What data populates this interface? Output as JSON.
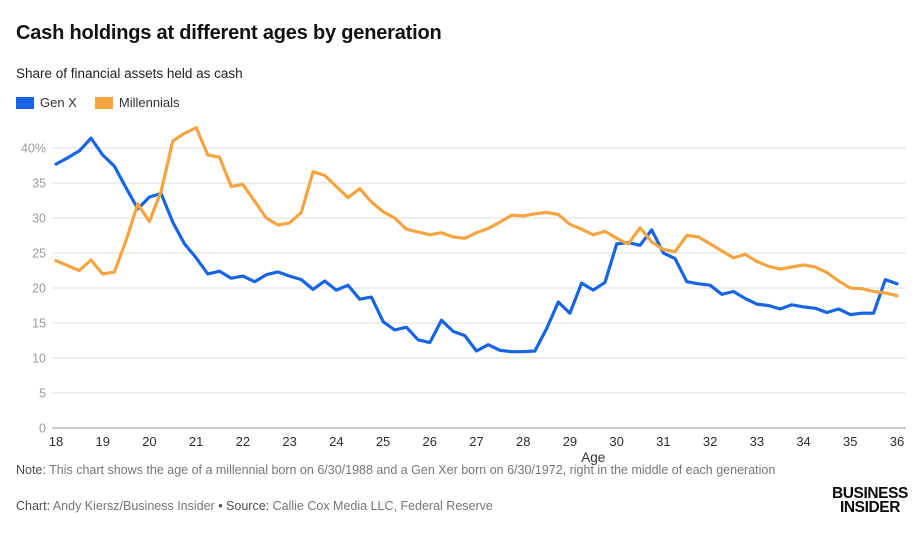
{
  "header": {
    "title": "Cash holdings at different ages by generation",
    "subtitle": "Share of financial assets held as cash"
  },
  "legend": [
    {
      "label": "Gen X",
      "color": "#1765E5"
    },
    {
      "label": "Millennials",
      "color": "#F5A43F"
    }
  ],
  "chart_data": {
    "type": "line",
    "title": "Cash holdings at different ages by generation",
    "subtitle": "Share of financial assets held as cash",
    "xlabel": "Age",
    "ylabel": "",
    "xlim": [
      18,
      36
    ],
    "ylim": [
      0,
      44
    ],
    "grid": true,
    "legend_position": "top-left",
    "x_ticks": [
      18,
      19,
      20,
      21,
      22,
      23,
      24,
      25,
      26,
      27,
      28,
      29,
      30,
      31,
      32,
      33,
      34,
      35,
      36
    ],
    "y_ticks": [
      0,
      5,
      10,
      15,
      20,
      25,
      30,
      35,
      40
    ],
    "y_top_tick_label": "40%",
    "x": [
      18,
      18.25,
      18.5,
      18.75,
      19,
      19.25,
      19.5,
      19.75,
      20,
      20.25,
      20.5,
      20.75,
      21,
      21.25,
      21.5,
      21.75,
      22,
      22.25,
      22.5,
      22.75,
      23,
      23.25,
      23.5,
      23.75,
      24,
      24.25,
      24.5,
      24.75,
      25,
      25.25,
      25.5,
      25.75,
      26,
      26.25,
      26.5,
      26.75,
      27,
      27.25,
      27.5,
      27.75,
      28,
      28.25,
      28.5,
      28.75,
      29,
      29.25,
      29.5,
      29.75,
      30,
      30.25,
      30.5,
      30.75,
      31,
      31.25,
      31.5,
      31.75,
      32,
      32.25,
      32.5,
      32.75,
      33,
      33.25,
      33.5,
      33.75,
      34,
      34.25,
      34.5,
      34.75,
      35,
      35.25,
      35.5,
      35.75,
      36
    ],
    "series": [
      {
        "name": "Gen X",
        "color": "#1765E5",
        "values": [
          37.7,
          38.6,
          39.6,
          41.4,
          39.0,
          37.4,
          34.3,
          31.3,
          33.0,
          33.5,
          29.4,
          26.3,
          24.3,
          22.0,
          22.4,
          21.4,
          21.7,
          20.9,
          21.9,
          22.3,
          21.7,
          21.2,
          19.8,
          21.0,
          19.7,
          20.4,
          18.4,
          18.7,
          15.2,
          14.0,
          14.4,
          12.6,
          12.2,
          15.4,
          13.8,
          13.2,
          11.0,
          11.9,
          11.1,
          10.9,
          10.9,
          11.0,
          14.2,
          18.0,
          16.4,
          20.7,
          19.7,
          20.8,
          26.3,
          26.5,
          26.1,
          28.3,
          25.0,
          24.2,
          20.9,
          20.6,
          20.4,
          19.1,
          19.5,
          18.5,
          17.7,
          17.5,
          17.0,
          17.6,
          17.3,
          17.1,
          16.5,
          17.0,
          16.2,
          16.4,
          16.4,
          21.2,
          20.6
        ]
      },
      {
        "name": "Millennials",
        "color": "#F5A43F",
        "values": [
          23.9,
          23.2,
          22.5,
          24.0,
          22.0,
          22.3,
          26.8,
          32.0,
          29.5,
          33.8,
          41.0,
          42.1,
          42.9,
          39.0,
          38.7,
          34.5,
          34.8,
          32.4,
          30.0,
          29.0,
          29.3,
          30.8,
          36.6,
          36.1,
          34.5,
          32.9,
          34.2,
          32.3,
          30.9,
          30.0,
          28.4,
          28.0,
          27.6,
          27.9,
          27.3,
          27.1,
          27.9,
          28.5,
          29.4,
          30.4,
          30.3,
          30.6,
          30.8,
          30.5,
          29.1,
          28.4,
          27.6,
          28.1,
          27.1,
          26.3,
          28.6,
          26.6,
          25.5,
          25.2,
          27.5,
          27.3,
          26.3,
          25.3,
          24.3,
          24.8,
          23.8,
          23.1,
          22.7,
          23.0,
          23.3,
          23.0,
          22.2,
          21.0,
          20.0,
          19.9,
          19.5,
          19.3,
          18.9
        ]
      }
    ],
    "colors": {
      "gridline": "#DDDDDD",
      "axis_baseline": "#999999",
      "y_tick_label": "#9B9B9B",
      "x_tick_label": "#2E2E2E"
    }
  },
  "footer": {
    "note_label": "Note:",
    "note_text": " This chart shows the age of a millennial born on 6/30/1988 and a Gen Xer born on 6/30/1972, right in the middle of each generation",
    "credit_chart_label": "Chart:",
    "credit_chart": " Andy Kiersz/Business Insider ",
    "credit_separator": "•",
    "credit_source_label": " Source:",
    "credit_source": " Callie Cox Media LLC, Federal Reserve",
    "logo_line1": "BUSINESS",
    "logo_line2": "INSIDER"
  }
}
